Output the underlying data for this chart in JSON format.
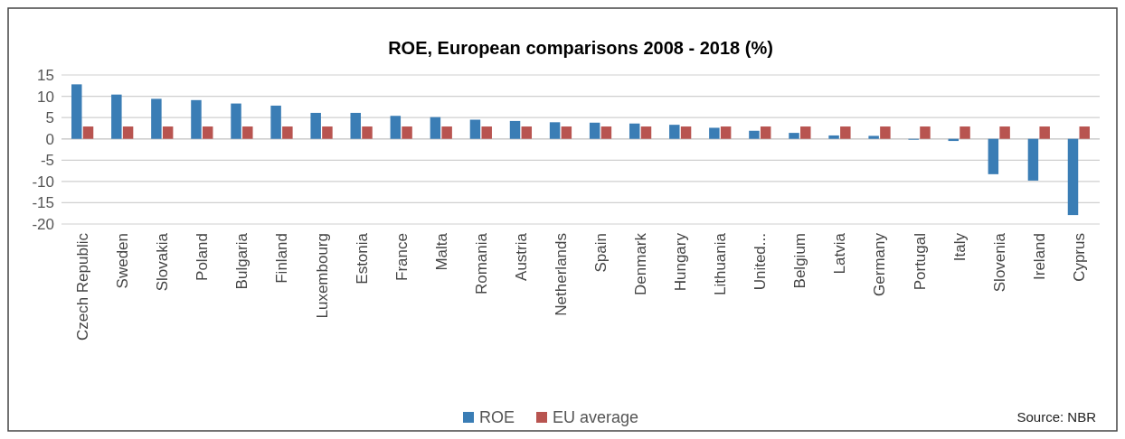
{
  "chart_data": {
    "type": "bar",
    "title": "ROE, European comparisons 2008 - 2018 (%)",
    "categories": [
      "Czech Republic",
      "Sweden",
      "Slovakia",
      "Poland",
      "Bulgaria",
      "Finland",
      "Luxembourg",
      "Estonia",
      "France",
      "Malta",
      "Romania",
      "Austria",
      "Netherlands",
      "Spain",
      "Denmark",
      "Hungary",
      "Lithuania",
      "United...",
      "Belgium",
      "Latvia",
      "Germany",
      "Portugal",
      "Italy",
      "Slovenia",
      "Ireland",
      "Cyprus"
    ],
    "series": [
      {
        "name": "ROE",
        "color": "#3a7db5",
        "values": [
          12.8,
          10.4,
          9.4,
          9.1,
          8.3,
          7.8,
          6.1,
          6.1,
          5.4,
          5.1,
          4.5,
          4.2,
          3.9,
          3.8,
          3.6,
          3.3,
          2.6,
          1.9,
          1.4,
          0.8,
          0.7,
          -0.2,
          -0.5,
          -8.3,
          -9.8,
          -17.9
        ]
      },
      {
        "name": "EU average",
        "color": "#b85450",
        "values": [
          2.9,
          2.9,
          2.9,
          2.9,
          2.9,
          2.9,
          2.9,
          2.9,
          2.9,
          2.9,
          2.9,
          2.9,
          2.9,
          2.9,
          2.9,
          2.9,
          2.9,
          2.9,
          2.9,
          2.9,
          2.9,
          2.9,
          2.9,
          2.9,
          2.9,
          2.9
        ]
      }
    ],
    "ylim": [
      -20,
      15
    ],
    "yticks": [
      -20,
      -15,
      -10,
      -5,
      0,
      5,
      10,
      15
    ],
    "grid": "y",
    "legend": "bottom",
    "annotations": [
      "Source: NBR"
    ]
  }
}
